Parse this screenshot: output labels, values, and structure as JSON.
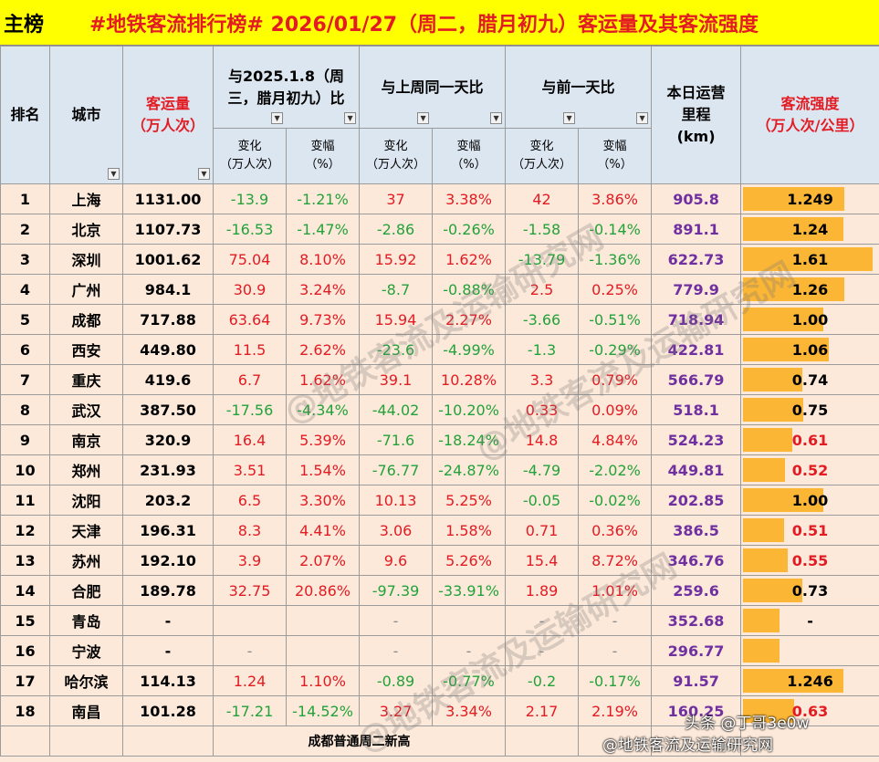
{
  "tab_label": "主榜",
  "title": "#地铁客流排行榜# 2026/01/27（周二，腊月初九）客运量及其客流强度",
  "headers": {
    "rank": "排名",
    "city": "城市",
    "volume_1": "客运量",
    "volume_2": "（万人次）",
    "cmp1_1": "与2025.1.8（周",
    "cmp1_2": "三，腊月初九）比",
    "cmp2": "与上周同一天比",
    "cmp3": "与前一天比",
    "mileage_1": "本日运营",
    "mileage_2": "里程",
    "mileage_3": "(km)",
    "intensity_1": "客流强度",
    "intensity_2": "（万人次/公里）",
    "change_1": "变化",
    "change_2": "（万人次）",
    "pct_1": "变幅",
    "pct_2": "（%）"
  },
  "rows": [
    {
      "rank": "1",
      "city": "上海",
      "volume": "1131.00",
      "c1": "-13.9",
      "p1": "-1.21%",
      "c2": "37",
      "p2": "3.38%",
      "c3": "42",
      "p3": "3.86%",
      "mileage": "905.8",
      "intensity": "1.249",
      "intensity_value": 1.249
    },
    {
      "rank": "2",
      "city": "北京",
      "volume": "1107.73",
      "c1": "-16.53",
      "p1": "-1.47%",
      "c2": "-2.86",
      "p2": "-0.26%",
      "c3": "-1.58",
      "p3": "-0.14%",
      "mileage": "891.1",
      "intensity": "1.24",
      "intensity_value": 1.24
    },
    {
      "rank": "3",
      "city": "深圳",
      "volume": "1001.62",
      "c1": "75.04",
      "p1": "8.10%",
      "c2": "15.92",
      "p2": "1.62%",
      "c3": "-13.79",
      "p3": "-1.36%",
      "mileage": "622.73",
      "intensity": "1.61",
      "intensity_value": 1.61
    },
    {
      "rank": "4",
      "city": "广州",
      "volume": "984.1",
      "c1": "30.9",
      "p1": "3.24%",
      "c2": "-8.7",
      "p2": "-0.88%",
      "c3": "2.5",
      "p3": "0.25%",
      "mileage": "779.9",
      "intensity": "1.26",
      "intensity_value": 1.26
    },
    {
      "rank": "5",
      "city": "成都",
      "volume": "717.88",
      "c1": "63.64",
      "p1": "9.73%",
      "c2": "15.94",
      "p2": "2.27%",
      "c3": "-3.66",
      "p3": "-0.51%",
      "mileage": "718.94",
      "intensity": "1.00",
      "intensity_value": 1.0
    },
    {
      "rank": "6",
      "city": "西安",
      "volume": "449.80",
      "c1": "11.5",
      "p1": "2.62%",
      "c2": "-23.6",
      "p2": "-4.99%",
      "c3": "-1.3",
      "p3": "-0.29%",
      "mileage": "422.81",
      "intensity": "1.06",
      "intensity_value": 1.06
    },
    {
      "rank": "7",
      "city": "重庆",
      "volume": "419.6",
      "c1": "6.7",
      "p1": "1.62%",
      "c2": "39.1",
      "p2": "10.28%",
      "c3": "3.3",
      "p3": "0.79%",
      "mileage": "566.79",
      "intensity": "0.74",
      "intensity_value": 0.74
    },
    {
      "rank": "8",
      "city": "武汉",
      "volume": "387.50",
      "c1": "-17.56",
      "p1": "-4.34%",
      "c2": "-44.02",
      "p2": "-10.20%",
      "c3": "0.33",
      "p3": "0.09%",
      "mileage": "518.1",
      "intensity": "0.75",
      "intensity_value": 0.75
    },
    {
      "rank": "9",
      "city": "南京",
      "volume": "320.9",
      "c1": "16.4",
      "p1": "5.39%",
      "c2": "-71.6",
      "p2": "-18.24%",
      "c3": "14.8",
      "p3": "4.84%",
      "mileage": "524.23",
      "intensity": "0.61",
      "intensity_value": 0.61
    },
    {
      "rank": "10",
      "city": "郑州",
      "volume": "231.93",
      "c1": "3.51",
      "p1": "1.54%",
      "c2": "-76.77",
      "p2": "-24.87%",
      "c3": "-4.79",
      "p3": "-2.02%",
      "mileage": "449.81",
      "intensity": "0.52",
      "intensity_value": 0.52
    },
    {
      "rank": "11",
      "city": "沈阳",
      "volume": "203.2",
      "c1": "6.5",
      "p1": "3.30%",
      "c2": "10.13",
      "p2": "5.25%",
      "c3": "-0.05",
      "p3": "-0.02%",
      "mileage": "202.85",
      "intensity": "1.00",
      "intensity_value": 1.0
    },
    {
      "rank": "12",
      "city": "天津",
      "volume": "196.31",
      "c1": "8.3",
      "p1": "4.41%",
      "c2": "3.06",
      "p2": "1.58%",
      "c3": "0.71",
      "p3": "0.36%",
      "mileage": "386.5",
      "intensity": "0.51",
      "intensity_value": 0.51
    },
    {
      "rank": "13",
      "city": "苏州",
      "volume": "192.10",
      "c1": "3.9",
      "p1": "2.07%",
      "c2": "9.6",
      "p2": "5.26%",
      "c3": "15.4",
      "p3": "8.72%",
      "mileage": "346.76",
      "intensity": "0.55",
      "intensity_value": 0.55
    },
    {
      "rank": "14",
      "city": "合肥",
      "volume": "189.78",
      "c1": "32.75",
      "p1": "20.86%",
      "c2": "-97.39",
      "p2": "-33.91%",
      "c3": "1.89",
      "p3": "1.01%",
      "mileage": "259.6",
      "intensity": "0.73",
      "intensity_value": 0.73
    },
    {
      "rank": "15",
      "city": "青岛",
      "volume": "-",
      "c1": "",
      "p1": "",
      "c2": "-",
      "p2": "",
      "c3": "-",
      "p3": "-",
      "mileage": "352.68",
      "intensity": "-",
      "intensity_value": 0.45
    },
    {
      "rank": "16",
      "city": "宁波",
      "volume": "-",
      "c1": "-",
      "p1": "",
      "c2": "-",
      "p2": "-",
      "c3": "-",
      "p3": "-",
      "mileage": "296.77",
      "intensity": "",
      "intensity_value": 0.45
    },
    {
      "rank": "17",
      "city": "哈尔滨",
      "volume": "114.13",
      "c1": "1.24",
      "p1": "1.10%",
      "c2": "-0.89",
      "p2": "-0.77%",
      "c3": "-0.2",
      "p3": "-0.17%",
      "mileage": "91.57",
      "intensity": "1.246",
      "intensity_value": 1.246
    },
    {
      "rank": "18",
      "city": "南昌",
      "volume": "101.28",
      "c1": "-17.21",
      "p1": "-14.52%",
      "c2": "3.27",
      "p2": "3.34%",
      "c3": "2.17",
      "p3": "2.19%",
      "mileage": "160.25",
      "intensity": "0.63",
      "intensity_value": 0.63
    }
  ],
  "footer_note": "成都普通周二新高",
  "intensity_red_threshold": 0.7,
  "colors": {
    "title_bg": "#ffff00",
    "title_text": "#e31b23",
    "header_bg": "#dce6f1",
    "body_bg": "#fde9d9",
    "positive": "#e31b23",
    "negative": "#22a23a",
    "mileage": "#7030a0",
    "bar": "#fbb636"
  },
  "watermarks": [
    "@地铁客流及运输研究网",
    "@地铁客流及运输研究网",
    "@地铁客流及运输研究网"
  ],
  "credit_1": "头条 @丁哥3e0w",
  "credit_2": "@地铁客流及运输研究网"
}
